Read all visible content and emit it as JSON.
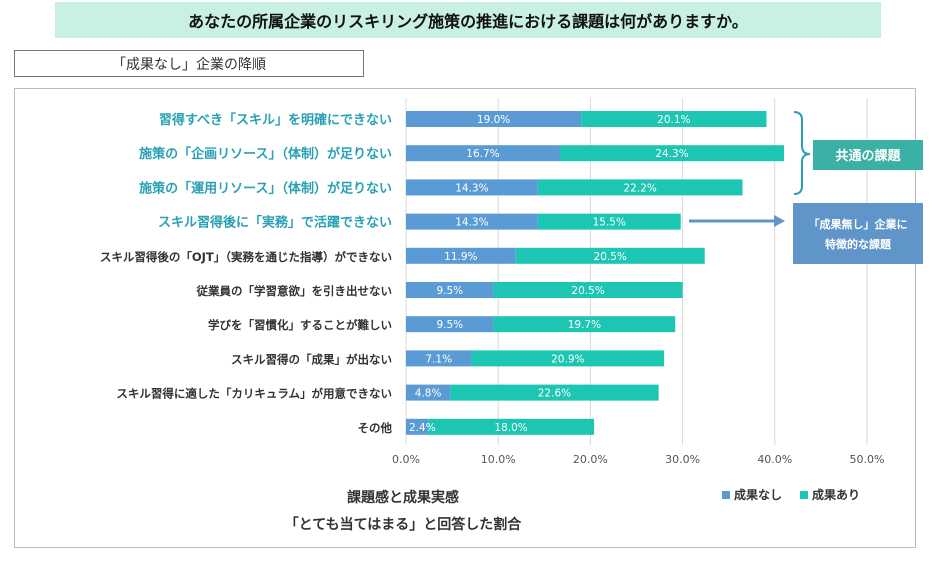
{
  "header": {
    "title": "あなたの所属企業のリスキリング施策の推進における課題は何がありますか。"
  },
  "sort_note": "「成果なし」企業の降順",
  "callouts": {
    "common": "共通の課題",
    "specific_line1": "「成果無し」企業に",
    "specific_line2": "特徴的な課題"
  },
  "caption": {
    "line1": "課題感と成果実感",
    "line2": "「とても当てはまる」と回答した割合"
  },
  "colors": {
    "no_result": "#5b9bd5",
    "result": "#1cc6b2",
    "highlight_text": "#2aa0b5",
    "callout_fill": "#3bb0a4",
    "callout2_fill": "#5f95c8"
  },
  "chart_data": {
    "type": "bar",
    "orientation": "horizontal",
    "stacked": true,
    "categories": [
      "習得すべき「スキル」を明確にできない",
      "施策の「企画リソース」（体制）が足りない",
      "施策の「運用リソース」（体制）が足りない",
      "スキル習得後に「実務」で活躍できない",
      "スキル習得後の「OJT」（実務を通じた指導）ができない",
      "従業員の「学習意欲」を引き出せない",
      "学びを「習慣化」することが難しい",
      "スキル習得の「成果」が出ない",
      "スキル習得に適した「カリキュラム」が用意できない",
      "その他"
    ],
    "highlighted": [
      true,
      true,
      true,
      true,
      false,
      false,
      false,
      false,
      false,
      false
    ],
    "series": [
      {
        "name": "成果なし",
        "values": [
          19.0,
          16.7,
          14.3,
          14.3,
          11.9,
          9.5,
          9.5,
          7.1,
          4.8,
          2.4
        ],
        "labels": [
          "19.0%",
          "16.7%",
          "14.3%",
          "14.3%",
          "11.9%",
          "9.5%",
          "9.5%",
          "7.1%",
          "4.8%",
          "2.4%"
        ]
      },
      {
        "name": "成果あり",
        "values": [
          20.1,
          24.3,
          22.2,
          15.5,
          20.5,
          20.5,
          19.7,
          20.9,
          22.6,
          18.0
        ],
        "labels": [
          "20.1%",
          "24.3%",
          "22.2%",
          "15.5%",
          "20.5%",
          "20.5%",
          "19.7%",
          "20.9%",
          "22.6%",
          "18.0%"
        ]
      }
    ],
    "xlim": [
      0,
      50
    ],
    "xticks": [
      0,
      10,
      20,
      30,
      40,
      50
    ],
    "xtick_labels": [
      "0.0%",
      "10.0%",
      "20.0%",
      "30.0%",
      "40.0%",
      "50.0%"
    ],
    "legend": [
      "成果なし",
      "成果あり"
    ],
    "legend_position": "bottom-right",
    "grid": true
  }
}
